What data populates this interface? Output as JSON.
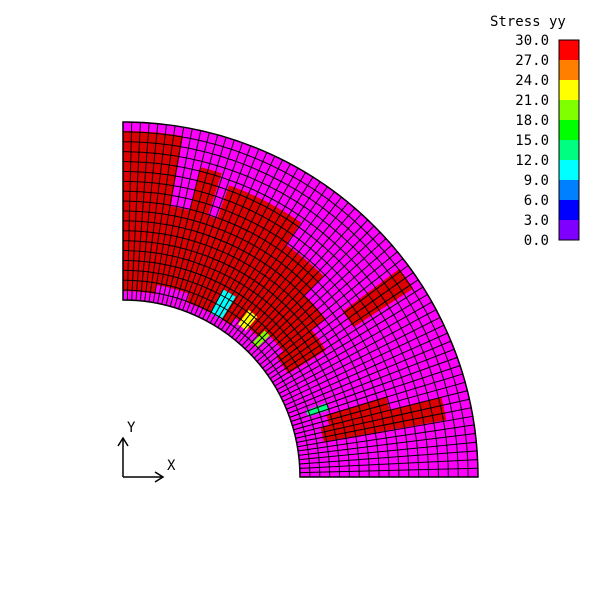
{
  "legend": {
    "title": "Stress yy",
    "levels": [
      {
        "label": "30.0",
        "color": "#ff0000"
      },
      {
        "label": "27.0",
        "color": "#ff8000"
      },
      {
        "label": "24.0",
        "color": "#ffff00"
      },
      {
        "label": "21.0",
        "color": "#80ff00"
      },
      {
        "label": "18.0",
        "color": "#00ff00"
      },
      {
        "label": "15.0",
        "color": "#00ff80"
      },
      {
        "label": "12.0",
        "color": "#00ffff"
      },
      {
        "label": "9.0",
        "color": "#0080ff"
      },
      {
        "label": "6.0",
        "color": "#0000ff"
      },
      {
        "label": "3.0",
        "color": "#8000ff"
      },
      {
        "label": "0.0",
        "color": "#ff00ff"
      }
    ]
  },
  "axes": {
    "x_label": "X",
    "y_label": "Y"
  },
  "mesh": {
    "shape": "quarter-annulus",
    "radial_divisions": 18,
    "angular_divisions": 64,
    "base_color": "#ff00ff",
    "high_stress_color": "#dd0000",
    "line_color": "#000000"
  }
}
